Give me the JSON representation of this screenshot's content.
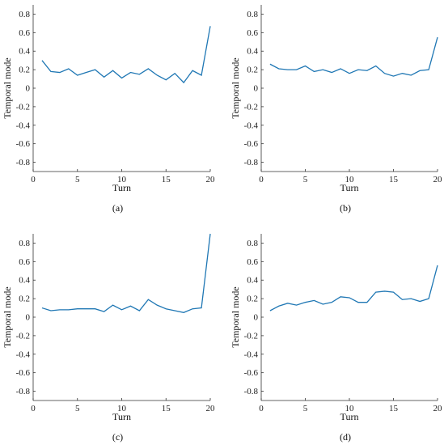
{
  "chart_data": [
    {
      "type": "line",
      "caption": "(a)",
      "xlabel": "Turn",
      "ylabel": "Temporal mode",
      "xlim": [
        0,
        20
      ],
      "ylim": [
        -0.9,
        0.9
      ],
      "xticks": [
        0,
        5,
        10,
        15,
        20
      ],
      "yticks": [
        -0.8,
        -0.6,
        -0.4,
        -0.2,
        0,
        0.2,
        0.4,
        0.6,
        0.8
      ],
      "x": [
        1,
        2,
        3,
        4,
        5,
        6,
        7,
        8,
        9,
        10,
        11,
        12,
        13,
        14,
        15,
        16,
        17,
        18,
        19,
        20
      ],
      "values": [
        0.3,
        0.18,
        0.17,
        0.21,
        0.14,
        0.17,
        0.2,
        0.12,
        0.19,
        0.11,
        0.17,
        0.15,
        0.21,
        0.14,
        0.09,
        0.16,
        0.06,
        0.19,
        0.14,
        0.67
      ]
    },
    {
      "type": "line",
      "caption": "(b)",
      "xlabel": "Turn",
      "ylabel": "Temporal mode",
      "xlim": [
        0,
        20
      ],
      "ylim": [
        -0.9,
        0.9
      ],
      "xticks": [
        0,
        5,
        10,
        15,
        20
      ],
      "yticks": [
        -0.8,
        -0.6,
        -0.4,
        -0.2,
        0,
        0.2,
        0.4,
        0.6,
        0.8
      ],
      "x": [
        1,
        2,
        3,
        4,
        5,
        6,
        7,
        8,
        9,
        10,
        11,
        12,
        13,
        14,
        15,
        16,
        17,
        18,
        19,
        20
      ],
      "values": [
        0.26,
        0.21,
        0.2,
        0.2,
        0.24,
        0.18,
        0.2,
        0.17,
        0.21,
        0.16,
        0.2,
        0.19,
        0.24,
        0.16,
        0.13,
        0.16,
        0.14,
        0.19,
        0.2,
        0.55
      ]
    },
    {
      "type": "line",
      "caption": "(c)",
      "xlabel": "Turn",
      "ylabel": "Temporal mode",
      "xlim": [
        0,
        20
      ],
      "ylim": [
        -0.9,
        0.9
      ],
      "xticks": [
        0,
        5,
        10,
        15,
        20
      ],
      "yticks": [
        -0.8,
        -0.6,
        -0.4,
        -0.2,
        0,
        0.2,
        0.4,
        0.6,
        0.8
      ],
      "x": [
        1,
        2,
        3,
        4,
        5,
        6,
        7,
        8,
        9,
        10,
        11,
        12,
        13,
        14,
        15,
        16,
        17,
        18,
        19,
        20
      ],
      "values": [
        0.1,
        0.07,
        0.08,
        0.08,
        0.09,
        0.09,
        0.09,
        0.06,
        0.13,
        0.08,
        0.12,
        0.07,
        0.19,
        0.13,
        0.09,
        0.07,
        0.05,
        0.09,
        0.1,
        0.9
      ]
    },
    {
      "type": "line",
      "caption": "(d)",
      "xlabel": "Turn",
      "ylabel": "Temporal mode",
      "xlim": [
        0,
        20
      ],
      "ylim": [
        -0.9,
        0.9
      ],
      "xticks": [
        0,
        5,
        10,
        15,
        20
      ],
      "yticks": [
        -0.8,
        -0.6,
        -0.4,
        -0.2,
        0,
        0.2,
        0.4,
        0.6,
        0.8
      ],
      "x": [
        1,
        2,
        3,
        4,
        5,
        6,
        7,
        8,
        9,
        10,
        11,
        12,
        13,
        14,
        15,
        16,
        17,
        18,
        19,
        20
      ],
      "values": [
        0.07,
        0.12,
        0.15,
        0.13,
        0.16,
        0.18,
        0.14,
        0.16,
        0.22,
        0.21,
        0.16,
        0.16,
        0.27,
        0.28,
        0.27,
        0.19,
        0.2,
        0.17,
        0.2,
        0.56
      ]
    }
  ],
  "colors": {
    "series": "#1f77b4",
    "axis": "#333333"
  }
}
